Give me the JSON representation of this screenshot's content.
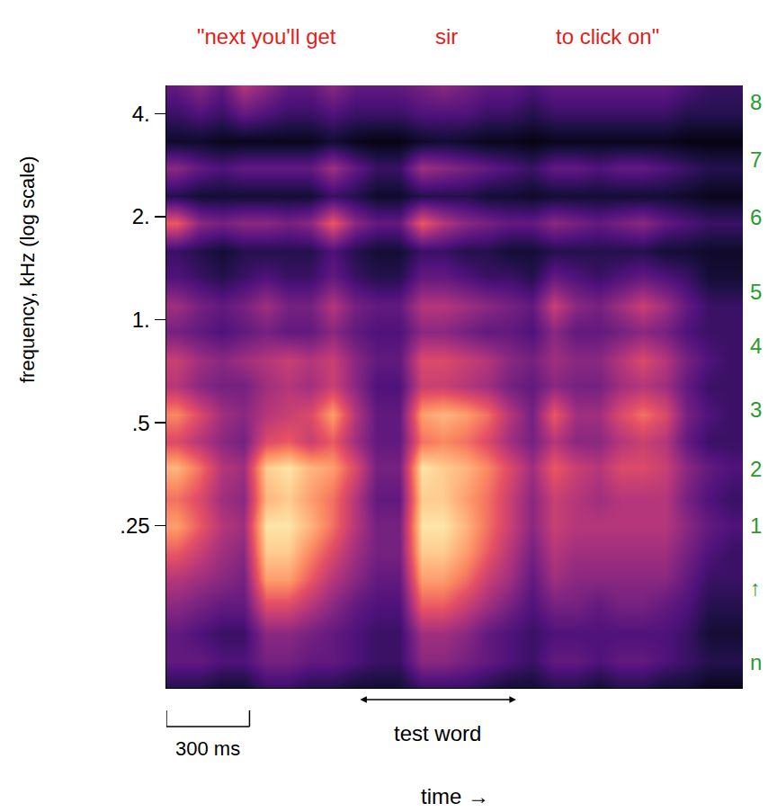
{
  "chart_data": {
    "type": "heatmap",
    "ylabel": "frequency, kHz (log scale)",
    "xlabel": "time →",
    "log": "y",
    "grid": false,
    "tick_labels": "y",
    "color": "magma",
    "xlim": [
      0,
      2080
    ],
    "xticks": [],
    "ylim": [
      0.084,
      4.84
    ],
    "yticks": [
      {
        "value": 4,
        "label": "4."
      },
      {
        "value": 2,
        "label": "2."
      },
      {
        "value": 1,
        "label": "1."
      },
      {
        "value": 0.5,
        "label": ".5"
      },
      {
        "value": 0.25,
        "label": ".25"
      }
    ],
    "zlim": [
      0,
      10
    ],
    "x": [
      40,
      120,
      200,
      280,
      360,
      440,
      520,
      600,
      680,
      760,
      840,
      920,
      1000,
      1080,
      1160,
      1240,
      1320,
      1400,
      1480,
      1560,
      1640,
      1720,
      1800,
      1880,
      1960,
      2040
    ],
    "y": [
      0.084,
      0.101,
      0.121,
      0.146,
      0.175,
      0.21,
      0.25,
      0.3,
      0.37,
      0.44,
      0.53,
      0.64,
      0.76,
      0.92,
      1.1,
      1.33,
      1.59,
      1.92,
      2.3,
      2.77,
      3.33,
      4.0,
      4.8
    ],
    "z": [
      [
        1.5,
        1.5,
        1,
        1,
        2,
        2,
        1.5,
        1.5,
        1,
        1,
        1,
        2,
        2,
        2,
        1.5,
        1,
        1,
        1.5,
        1.5,
        1,
        1.5,
        1.5,
        1,
        1,
        0.5,
        0.5
      ],
      [
        3,
        3,
        2.5,
        2.5,
        3.5,
        3.5,
        3,
        3,
        2.5,
        2,
        2,
        4,
        4,
        3.5,
        3,
        2.5,
        2,
        3,
        3,
        2.5,
        3,
        3,
        2.5,
        2,
        1.5,
        1.5
      ],
      [
        3,
        2.5,
        2,
        2,
        4,
        4,
        3.5,
        3,
        2.5,
        2,
        2,
        4.5,
        4.5,
        4,
        3,
        2.5,
        2,
        2.5,
        2.5,
        2.5,
        2.5,
        2.5,
        2.5,
        2,
        1,
        1
      ],
      [
        4,
        3.5,
        3,
        3,
        6,
        6,
        5,
        4,
        3,
        2.5,
        2.5,
        6.5,
        6.5,
        5.5,
        4.5,
        3.5,
        2.5,
        3.5,
        3.5,
        3,
        3.5,
        3.5,
        3,
        2.5,
        1.5,
        1.5
      ],
      [
        5,
        4.5,
        4,
        3.5,
        8,
        8,
        6.5,
        5,
        4,
        3,
        3,
        8,
        8,
        7,
        5.5,
        4.5,
        3,
        4.5,
        4,
        4,
        4,
        4,
        4,
        3,
        2,
        2
      ],
      [
        6.5,
        5.5,
        4.5,
        4,
        9,
        9,
        7.5,
        6,
        4.5,
        3.5,
        3.5,
        9,
        9,
        8,
        6.5,
        5,
        3.5,
        5,
        4.5,
        4.5,
        4.5,
        4.5,
        4.5,
        3.5,
        2.5,
        2
      ],
      [
        8,
        6.5,
        5,
        4.5,
        9.5,
        9.5,
        8.5,
        7,
        5,
        3.5,
        3.5,
        9.5,
        9.5,
        8.5,
        7,
        5.5,
        4,
        5.5,
        5,
        5,
        5,
        5,
        5,
        4,
        3,
        2.5
      ],
      [
        7,
        6,
        4.5,
        4,
        8.5,
        9,
        8,
        7,
        5,
        3,
        3,
        9,
        9,
        8,
        7,
        5.5,
        4,
        5.5,
        5,
        4.5,
        5,
        5,
        5,
        3.5,
        2.5,
        2
      ],
      [
        8.5,
        7,
        5,
        4.5,
        9,
        9.5,
        8.5,
        8,
        6,
        3.5,
        3.5,
        9.5,
        9,
        8.5,
        7.5,
        6,
        4.5,
        6.5,
        5.5,
        5,
        6,
        6,
        5.5,
        4,
        3,
        2.5
      ],
      [
        6,
        5,
        4,
        3.5,
        6,
        6.5,
        5.5,
        6.5,
        4.5,
        3,
        3,
        7,
        7.5,
        7,
        6,
        4.5,
        3.5,
        5,
        4,
        4,
        5,
        5.5,
        5,
        3,
        2,
        2
      ],
      [
        7.5,
        6,
        4.5,
        4,
        5,
        5.5,
        6,
        8,
        5,
        3,
        3,
        8,
        8.5,
        8,
        7,
        5,
        3.5,
        6.5,
        4.5,
        4.5,
        6,
        7,
        6,
        3.5,
        2.5,
        2
      ],
      [
        5,
        4,
        3.5,
        3.5,
        4.5,
        5,
        4.5,
        5.5,
        4,
        2.5,
        2.5,
        5.5,
        5.5,
        5,
        4.5,
        3.5,
        3,
        4,
        3.5,
        3.5,
        4.5,
        5,
        4.5,
        3,
        2,
        2
      ],
      [
        5.5,
        4.5,
        4,
        4.5,
        5,
        5.5,
        5,
        5.5,
        4,
        3,
        3,
        6,
        6,
        5.5,
        5,
        4,
        3.5,
        4.5,
        4,
        4,
        5,
        6,
        5,
        3.5,
        2.5,
        2
      ],
      [
        3.5,
        3,
        2.5,
        3,
        3.5,
        3,
        3,
        4,
        3,
        2.5,
        2.5,
        4,
        4,
        3.5,
        3,
        3,
        2.5,
        4,
        3,
        3,
        3.5,
        4,
        3.5,
        2.5,
        2,
        2
      ],
      [
        4.5,
        3.5,
        3,
        3.5,
        4.5,
        3.5,
        3.5,
        5,
        3.5,
        3,
        3,
        5,
        5,
        4.5,
        4,
        3.5,
        3,
        5.5,
        4,
        3.5,
        4.5,
        5.5,
        4.5,
        3,
        2,
        2
      ],
      [
        2.5,
        2,
        1.5,
        2,
        2.5,
        2,
        2,
        3,
        2,
        1.5,
        1.5,
        3,
        3,
        2.5,
        2,
        2,
        1.5,
        3,
        2.5,
        2,
        2.5,
        3,
        2.5,
        2,
        1,
        1
      ],
      [
        2,
        1.5,
        1,
        1.5,
        1.5,
        1.5,
        1.5,
        2.5,
        1.5,
        1,
        1,
        2,
        2,
        1.5,
        1.5,
        1,
        1,
        1.5,
        1.5,
        1.5,
        1.5,
        1.5,
        1,
        1,
        0.8,
        0.8
      ],
      [
        6.5,
        4,
        3.5,
        4,
        4,
        3.5,
        4,
        6.5,
        4,
        3,
        3,
        6.5,
        5,
        4,
        3.5,
        3,
        3,
        4,
        3.5,
        3,
        3.5,
        4,
        3,
        2.5,
        2,
        2
      ],
      [
        1.5,
        1,
        1,
        1,
        1,
        1,
        1,
        2,
        1.5,
        0.8,
        0.8,
        1.5,
        1.5,
        1.5,
        1,
        1,
        0.8,
        1,
        1,
        1,
        1,
        1,
        1,
        0.8,
        0.5,
        0.5
      ],
      [
        4,
        3,
        2.5,
        3,
        3,
        3,
        3,
        4.5,
        3,
        2,
        2,
        4.5,
        4,
        3.5,
        3,
        2.5,
        2,
        3,
        3,
        2.5,
        3,
        3,
        2.5,
        2,
        1.5,
        1.5
      ],
      [
        0.8,
        0.8,
        0.5,
        0.5,
        0.5,
        0.5,
        0.5,
        1,
        0.5,
        0.3,
        0.3,
        0.8,
        1,
        0.8,
        0.5,
        0.5,
        0.3,
        0.5,
        0.5,
        0.5,
        0.5,
        0.5,
        0.5,
        0.3,
        0.3,
        0.3
      ],
      [
        2,
        2.5,
        2,
        3,
        2.5,
        2,
        2,
        2.5,
        2,
        2,
        2,
        2.5,
        2.5,
        2.5,
        2,
        2,
        1.5,
        2,
        2,
        2,
        2,
        2,
        2,
        1.5,
        1.5,
        1.5
      ],
      [
        3,
        4,
        3,
        5,
        4,
        3,
        3,
        4,
        3,
        3,
        3,
        3.5,
        4,
        3.5,
        3,
        3,
        2.5,
        3,
        3,
        3,
        3,
        3,
        3,
        2.5,
        2,
        2
      ]
    ],
    "annotations": [
      {
        "text": "\"next you'll get",
        "x": 363
      },
      {
        "text": "sir",
        "x": 1010
      },
      {
        "text": "to click on\"",
        "x": 1593
      }
    ],
    "channel_labels": [
      {
        "y": 4.33,
        "label": "8"
      },
      {
        "y": 2.94,
        "label": "7"
      },
      {
        "y": 2.0,
        "label": "6"
      },
      {
        "y": 1.21,
        "label": "5"
      },
      {
        "y": 0.84,
        "label": "4"
      },
      {
        "y": 0.545,
        "label": "3"
      },
      {
        "y": 0.366,
        "label": "2"
      },
      {
        "y": 0.25,
        "label": "1"
      },
      {
        "y": 0.165,
        "label": "↑"
      },
      {
        "y": 0.1,
        "label": "n"
      }
    ],
    "test_word": {
      "label": "test word",
      "start": 694,
      "end": 1262
    },
    "scale_bar": {
      "label": "300 ms",
      "start": 0,
      "length": 300
    }
  }
}
